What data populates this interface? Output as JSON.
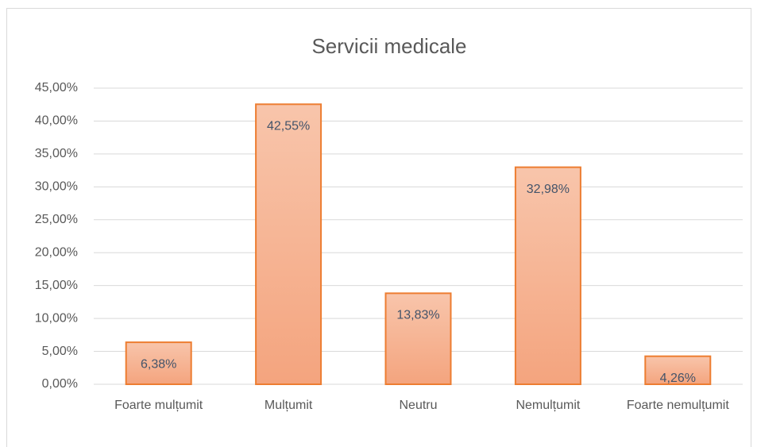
{
  "chart_data": {
    "type": "bar",
    "title": "Servicii  medicale",
    "categories": [
      "Foarte mulțumit",
      "Mulțumit",
      "Neutru",
      "Nemulțumit",
      "Foarte nemulțumit"
    ],
    "values": [
      6.38,
      42.55,
      13.83,
      32.98,
      4.26
    ],
    "value_labels": [
      "6,38%",
      "42,55%",
      "13,83%",
      "32,98%",
      "4,26%"
    ],
    "color": "#f4b183",
    "ylim": [
      0,
      45
    ],
    "yticks": [
      {
        "value": 0,
        "label": "0,00%"
      },
      {
        "value": 5,
        "label": "5,00%"
      },
      {
        "value": 10,
        "label": "10,00%"
      },
      {
        "value": 15,
        "label": "15,00%"
      },
      {
        "value": 20,
        "label": "20,00%"
      },
      {
        "value": 25,
        "label": "25,00%"
      },
      {
        "value": 30,
        "label": "30,00%"
      },
      {
        "value": 35,
        "label": "35,00%"
      },
      {
        "value": 40,
        "label": "40,00%"
      },
      {
        "value": 45,
        "label": "45,00%"
      }
    ],
    "grid": true
  }
}
